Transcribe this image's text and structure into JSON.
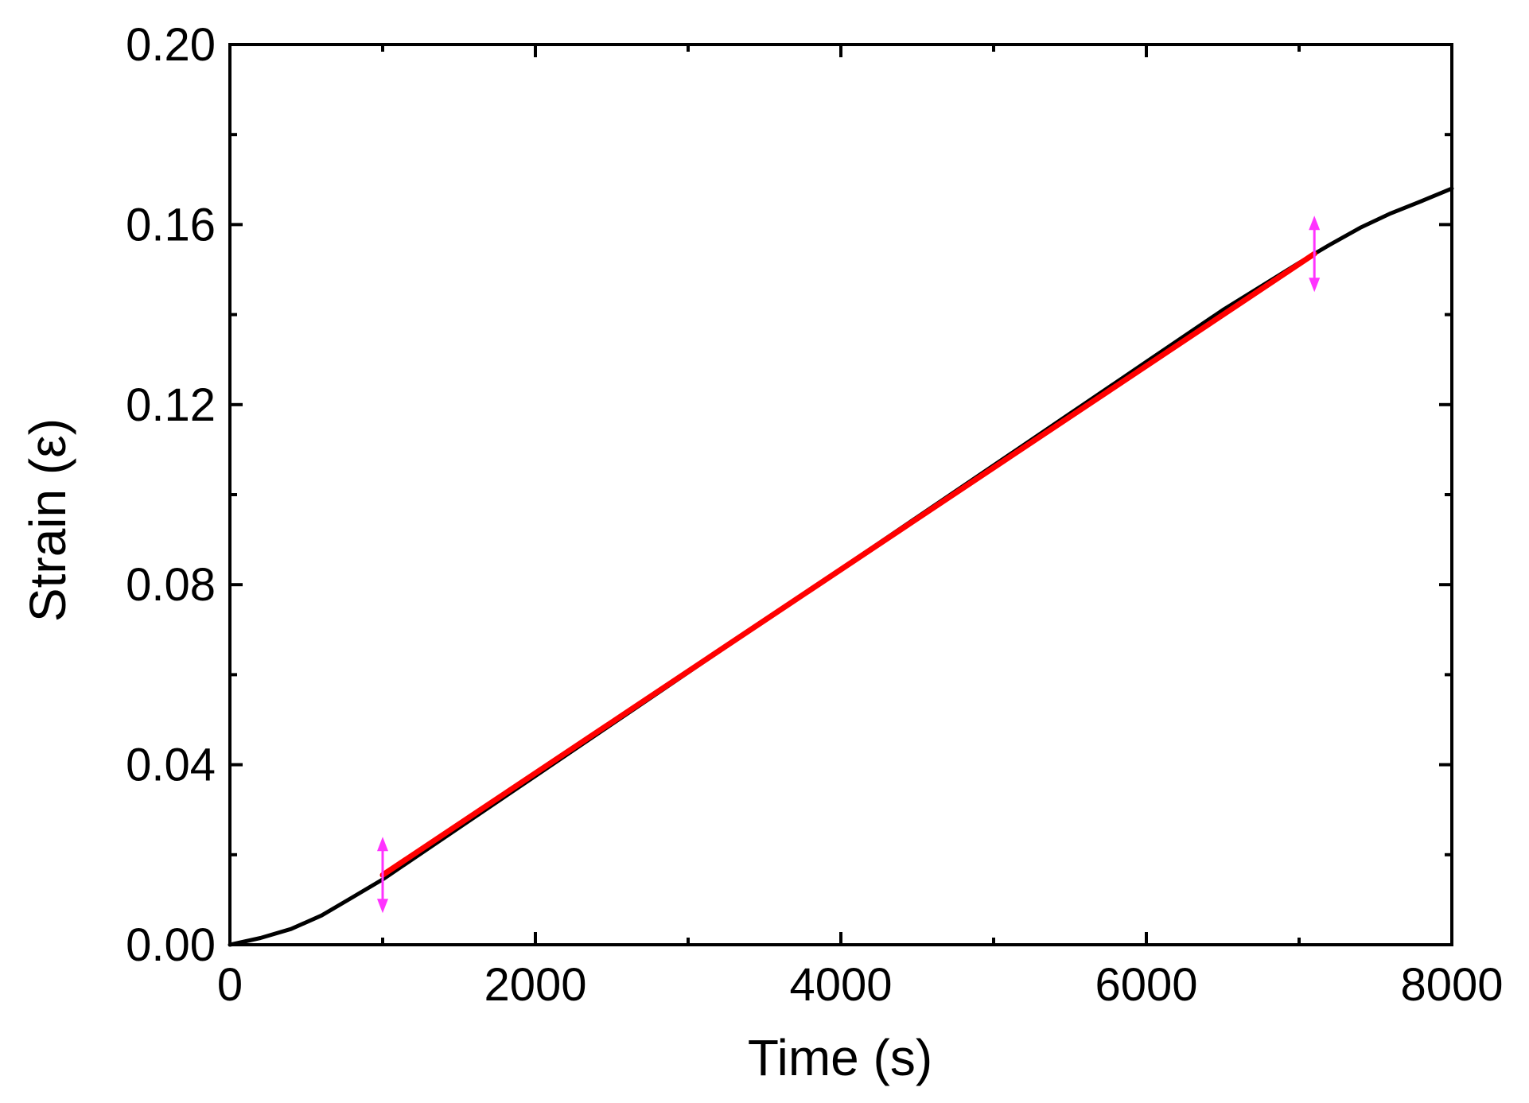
{
  "chart_data": {
    "type": "line",
    "xlabel": "Time (s)",
    "ylabel": "Strain (ε)",
    "xlim": [
      0,
      8000
    ],
    "ylim": [
      0,
      0.2
    ],
    "x_ticks": [
      "0",
      "2000",
      "4000",
      "6000",
      "8000"
    ],
    "y_ticks": [
      "0.00",
      "0.04",
      "0.08",
      "0.12",
      "0.16",
      "0.20"
    ],
    "grid": false,
    "legend": "none",
    "series": [
      {
        "color": "#000000",
        "x": [
          0,
          200,
          400,
          600,
          800,
          1000,
          1500,
          2000,
          2500,
          3000,
          3500,
          4000,
          4500,
          5000,
          5500,
          6000,
          6500,
          7000,
          7200,
          7400,
          7600,
          7800,
          8000
        ],
        "y": [
          0,
          0.0015,
          0.0035,
          0.0065,
          0.0105,
          0.0145,
          0.026,
          0.0375,
          0.049,
          0.0605,
          0.072,
          0.0835,
          0.095,
          0.1065,
          0.118,
          0.1295,
          0.141,
          0.1515,
          0.1555,
          0.1593,
          0.1625,
          0.1652,
          0.168
        ]
      },
      {
        "color": "#ff0000",
        "x": [
          1000,
          7100
        ],
        "y": [
          0.0155,
          0.1535
        ]
      }
    ],
    "markers": [
      {
        "x": 1000,
        "y": 0.0155,
        "color": "#ff33ff"
      },
      {
        "x": 7100,
        "y": 0.1535,
        "color": "#ff33ff"
      }
    ]
  }
}
